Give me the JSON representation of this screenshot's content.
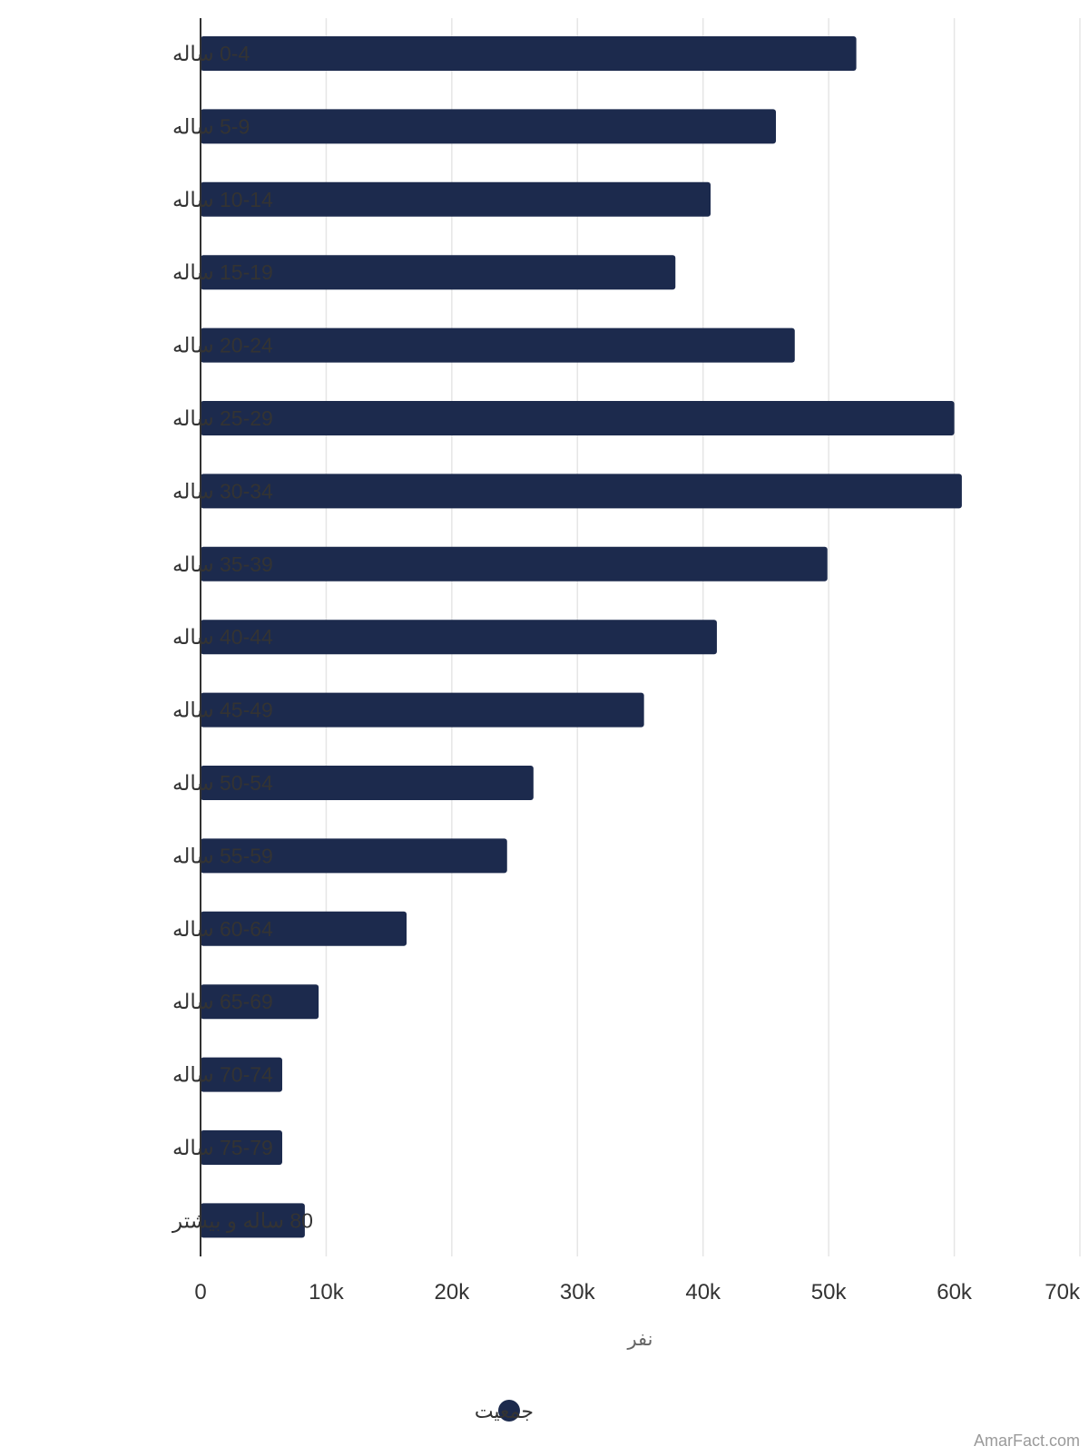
{
  "chart_data": {
    "type": "bar",
    "orientation": "horizontal",
    "categories": [
      "0-4 ساله",
      "5-9 ساله",
      "10-14 ساله",
      "15-19 ساله",
      "20-24 ساله",
      "25-29 ساله",
      "30-34 ساله",
      "35-39 ساله",
      "40-44 ساله",
      "45-49 ساله",
      "50-54 ساله",
      "55-59 ساله",
      "60-64 ساله",
      "65-69 ساله",
      "70-74 ساله",
      "75-79 ساله",
      "80 ساله و بیشتر"
    ],
    "series": [
      {
        "name": "جمعیت",
        "color": "#1c2a4d",
        "values": [
          52200,
          45800,
          40600,
          37800,
          47300,
          60000,
          60600,
          49900,
          41100,
          35300,
          26500,
          24400,
          16400,
          9400,
          6500,
          6500,
          8300
        ]
      }
    ],
    "xlabel": "نفر",
    "ylabel": "",
    "xlim": [
      0,
      70000
    ],
    "x_ticks": [
      0,
      10000,
      20000,
      30000,
      40000,
      50000,
      60000,
      70000
    ],
    "x_tick_labels": [
      "0",
      "10k",
      "20k",
      "30k",
      "40k",
      "50k",
      "60k",
      "70k"
    ],
    "grid": true,
    "legend_position": "bottom-center"
  },
  "watermark": "AmarFact.com"
}
